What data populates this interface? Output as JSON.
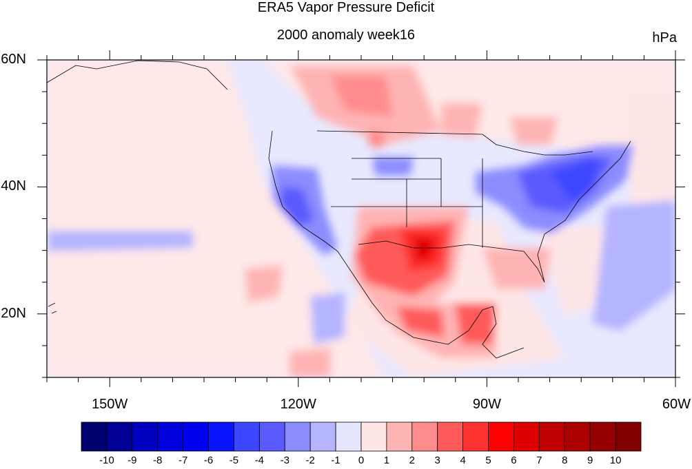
{
  "title": "ERA5 Vapor Pressure Deficit",
  "subtitle": "2000 anomaly week16",
  "units": "hPa",
  "map": {
    "lon_range": [
      -160,
      -60
    ],
    "lat_range": [
      10,
      60
    ],
    "x_ticks": [
      {
        "lon": -150,
        "label": "150W"
      },
      {
        "lon": -120,
        "label": "120W"
      },
      {
        "lon": -90,
        "label": "90W"
      },
      {
        "lon": -60,
        "label": "60W"
      }
    ],
    "y_ticks": [
      {
        "lat": 60,
        "label": "60N"
      },
      {
        "lat": 40,
        "label": "40N"
      },
      {
        "lat": 20,
        "label": "20N"
      }
    ]
  },
  "colorbar": {
    "colors": [
      "#00006e",
      "#000096",
      "#0000be",
      "#0000dc",
      "#0000f0",
      "#0a14ff",
      "#3c46ff",
      "#5a5aff",
      "#8c8cff",
      "#b4b4ff",
      "#e6e6ff",
      "#ffe6e6",
      "#ffb4b4",
      "#ff8c8c",
      "#ff5a5a",
      "#ff3232",
      "#ff0000",
      "#dc0000",
      "#be0000",
      "#aa0000",
      "#960000",
      "#800000"
    ],
    "labels": [
      "-10",
      "-9",
      "-8",
      "-7",
      "-6",
      "-5",
      "-4",
      "-3",
      "-2",
      "-1",
      "0",
      "1",
      "2",
      "3",
      "4",
      "5",
      "6",
      "7",
      "8",
      "9",
      "10"
    ]
  }
}
